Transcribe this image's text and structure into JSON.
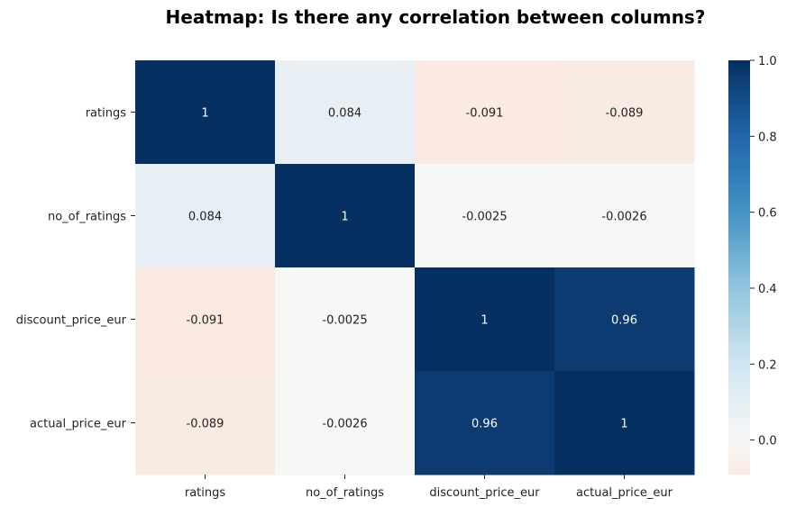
{
  "chart_data": {
    "type": "heatmap",
    "title": "Heatmap: Is there any correlation between columns?",
    "rows": [
      "ratings",
      "no_of_ratings",
      "discount_price_eur",
      "actual_price_eur"
    ],
    "columns": [
      "ratings",
      "no_of_ratings",
      "discount_price_eur",
      "actual_price_eur"
    ],
    "values": [
      [
        1,
        0.084,
        -0.091,
        -0.089
      ],
      [
        0.084,
        1,
        -0.0025,
        -0.0026
      ],
      [
        -0.091,
        -0.0025,
        1,
        0.96
      ],
      [
        -0.089,
        -0.0026,
        0.96,
        1
      ]
    ],
    "annotations": [
      [
        "1",
        "0.084",
        "-0.091",
        "-0.089"
      ],
      [
        "0.084",
        "1",
        "-0.0025",
        "-0.0026"
      ],
      [
        "-0.091",
        "-0.0025",
        "1",
        "0.96"
      ],
      [
        "-0.089",
        "-0.0026",
        "0.96",
        "1"
      ]
    ],
    "colormap": "RdBu",
    "colorbar": {
      "vmin": -0.091,
      "vmax": 1.0,
      "ticks": [
        0.0,
        0.2,
        0.4,
        0.6,
        0.8,
        1.0
      ],
      "tick_labels": [
        "0.0",
        "0.2",
        "0.4",
        "0.6",
        "0.8",
        "1.0"
      ]
    }
  }
}
